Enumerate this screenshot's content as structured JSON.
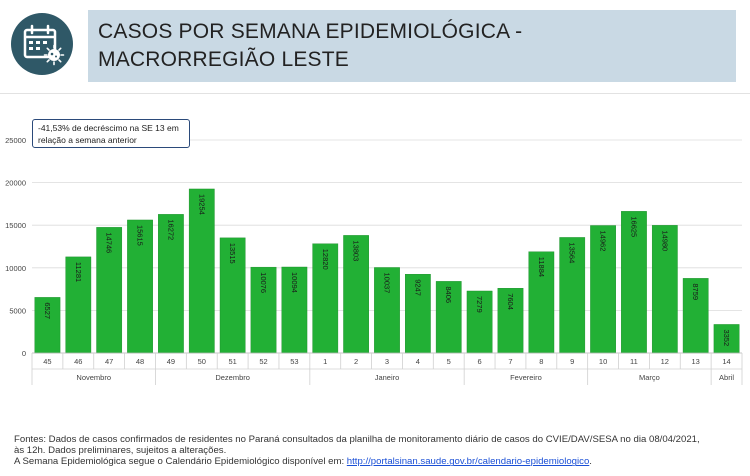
{
  "header": {
    "icon": "calendar-virus-icon",
    "title_line1": "CASOS POR SEMANA EPIDEMIOLÓGICA -",
    "title_line2": "MACRORREGIÃO LESTE"
  },
  "annotation": {
    "line1": "-41,53% de decréscimo na SE 13 em",
    "line2": "relação a semana anterior"
  },
  "chart_data": {
    "type": "bar",
    "categories": [
      "45",
      "46",
      "47",
      "48",
      "49",
      "50",
      "51",
      "52",
      "53",
      "1",
      "2",
      "3",
      "4",
      "5",
      "6",
      "7",
      "8",
      "9",
      "10",
      "11",
      "12",
      "13",
      "14"
    ],
    "values": [
      6527,
      11281,
      14746,
      15615,
      16272,
      19254,
      13515,
      10076,
      10094,
      12820,
      13803,
      10037,
      9247,
      8406,
      7279,
      7604,
      11884,
      13564,
      14962,
      16625,
      14980,
      8759,
      3352
    ],
    "value_labels": [
      "6527",
      "11281",
      "14746",
      "15615",
      "16272",
      "19254",
      "13515",
      "10076",
      "10094",
      "12820",
      "13803",
      "10037",
      "9247",
      "8406",
      "7279",
      "7604",
      "11884",
      "13564",
      "14962",
      "16625",
      "14980",
      "8759",
      "3352"
    ],
    "month_groups": [
      {
        "label": "Novembro",
        "start": 0,
        "end": 3
      },
      {
        "label": "Dezembro",
        "start": 4,
        "end": 8
      },
      {
        "label": "Janeiro",
        "start": 9,
        "end": 13
      },
      {
        "label": "Fevereiro",
        "start": 14,
        "end": 17
      },
      {
        "label": "Março",
        "start": 18,
        "end": 21
      },
      {
        "label": "Abril",
        "start": 22,
        "end": 22
      }
    ],
    "y_ticks": [
      0,
      5000,
      10000,
      15000,
      20000,
      25000
    ],
    "y_tick_labels": [
      "0",
      "5000",
      "10000",
      "15000",
      "20000",
      "25000"
    ],
    "ylim": [
      0,
      25000
    ],
    "grid": "horizontal",
    "bar_color": "#22b035",
    "title": "",
    "xlabel": "",
    "ylabel": ""
  },
  "footer": {
    "line1": "Fontes: Dados de casos confirmados de residentes no Paraná consultados da planilha de monitoramento diário de casos do CVIE/DAV/SESA no dia 08/04/2021,",
    "line2": "às 12h. Dados preliminares, sujeitos a alterações.",
    "line3_prefix": "A Semana Epidemiológica segue o Calendário Epidemiológico disponível em: ",
    "link": "http://portalsinan.saude.gov.br/calendario-epidemiologico",
    "line3_suffix": "."
  }
}
